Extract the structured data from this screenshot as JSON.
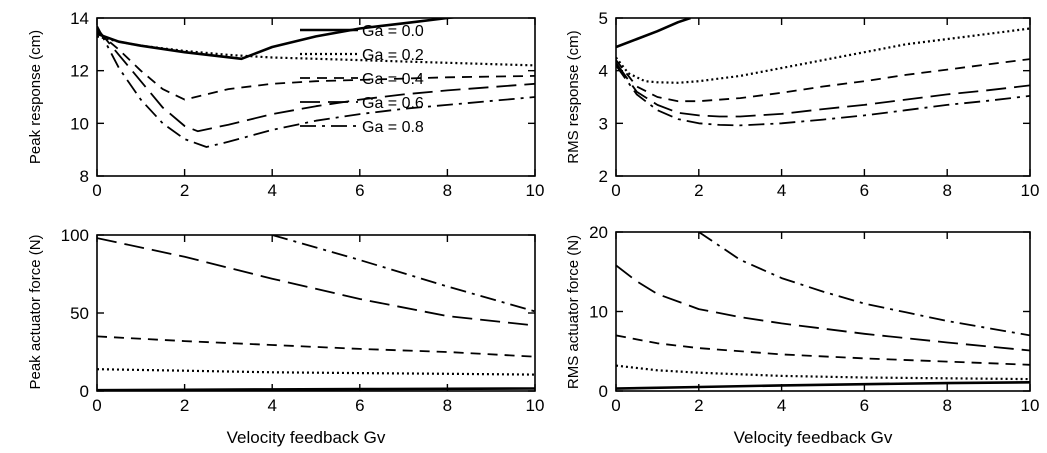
{
  "legend": {
    "placement": "top-right of upper-left panel",
    "entries": [
      "Ga = 0.0",
      "Ga = 0.2",
      "Ga = 0.4",
      "Ga = 0.6",
      "Ga = 0.8"
    ]
  },
  "chart_data": [
    {
      "id": "peak-response",
      "type": "line",
      "title": "",
      "xlabel": "",
      "ylabel": "Peak response (cm)",
      "xlim": [
        0,
        10
      ],
      "ylim": [
        8,
        14
      ],
      "xticks": [
        "0",
        "2",
        "4",
        "6",
        "8",
        "10"
      ],
      "yticks": [
        "8",
        "10",
        "12",
        "14"
      ],
      "grid": false,
      "series": [
        {
          "name": "Ga = 0.0",
          "dash": "solid",
          "x": [
            0,
            0.5,
            1,
            2,
            3.3,
            4,
            5,
            6,
            7,
            8,
            8.5,
            10
          ],
          "y": [
            13.4,
            13.1,
            12.95,
            12.7,
            12.45,
            12.9,
            13.3,
            13.6,
            13.8,
            14.0,
            14.1,
            14.1
          ]
        },
        {
          "name": "Ga = 0.2",
          "dash": "dotted",
          "x": [
            0,
            0.5,
            1,
            2,
            3,
            4,
            5,
            6,
            7,
            8,
            9,
            10
          ],
          "y": [
            13.3,
            13.1,
            12.95,
            12.75,
            12.6,
            12.5,
            12.45,
            12.4,
            12.35,
            12.3,
            12.25,
            12.2
          ]
        },
        {
          "name": "Ga = 0.4",
          "dash": "dash",
          "x": [
            0,
            0.5,
            1,
            1.5,
            2,
            3,
            4,
            5,
            6,
            7,
            8,
            10
          ],
          "y": [
            13.5,
            12.8,
            12.0,
            11.3,
            10.9,
            11.3,
            11.5,
            11.6,
            11.65,
            11.7,
            11.75,
            11.8
          ]
        },
        {
          "name": "Ga = 0.6",
          "dash": "longdash",
          "x": [
            0,
            0.5,
            1,
            1.5,
            2,
            2.3,
            3,
            4,
            5,
            6,
            7,
            8,
            10
          ],
          "y": [
            13.6,
            12.6,
            11.6,
            10.6,
            9.9,
            9.7,
            9.95,
            10.35,
            10.65,
            10.9,
            11.1,
            11.25,
            11.5
          ]
        },
        {
          "name": "Ga = 0.8",
          "dash": "dashdot",
          "x": [
            0,
            0.5,
            1,
            1.5,
            2,
            2.5,
            3,
            4,
            5,
            6,
            7,
            8,
            10
          ],
          "y": [
            13.7,
            12.1,
            10.9,
            10.0,
            9.4,
            9.1,
            9.3,
            9.75,
            10.1,
            10.35,
            10.55,
            10.7,
            11.0
          ]
        }
      ]
    },
    {
      "id": "rms-response",
      "type": "line",
      "title": "",
      "xlabel": "",
      "ylabel": "RMS response (cm)",
      "xlim": [
        0,
        10
      ],
      "ylim": [
        2,
        5
      ],
      "xticks": [
        "0",
        "2",
        "4",
        "6",
        "8",
        "10"
      ],
      "yticks": [
        "2",
        "3",
        "4",
        "5"
      ],
      "grid": false,
      "series": [
        {
          "name": "Ga = 0.0",
          "dash": "solid",
          "x": [
            0,
            0.5,
            1,
            1.5,
            1.8
          ],
          "y": [
            4.45,
            4.6,
            4.75,
            4.92,
            5.0
          ]
        },
        {
          "name": "Ga = 0.2",
          "dash": "dotted",
          "x": [
            0,
            0.3,
            0.7,
            1,
            1.5,
            2,
            3,
            4,
            5,
            6,
            7,
            8,
            9,
            10
          ],
          "y": [
            4.25,
            3.95,
            3.8,
            3.78,
            3.77,
            3.8,
            3.9,
            4.05,
            4.2,
            4.35,
            4.5,
            4.6,
            4.7,
            4.8
          ]
        },
        {
          "name": "Ga = 0.4",
          "dash": "dash",
          "x": [
            0,
            0.5,
            1,
            1.5,
            2,
            3,
            4,
            5,
            6,
            7,
            8,
            9,
            10
          ],
          "y": [
            4.2,
            3.7,
            3.5,
            3.42,
            3.42,
            3.48,
            3.58,
            3.7,
            3.8,
            3.92,
            4.02,
            4.12,
            4.22
          ]
        },
        {
          "name": "Ga = 0.6",
          "dash": "longdash",
          "x": [
            0,
            0.5,
            1,
            1.5,
            2,
            2.5,
            3,
            4,
            5,
            6,
            7,
            8,
            9,
            10
          ],
          "y": [
            4.15,
            3.6,
            3.35,
            3.2,
            3.15,
            3.13,
            3.13,
            3.18,
            3.27,
            3.35,
            3.45,
            3.55,
            3.63,
            3.72
          ]
        },
        {
          "name": "Ga = 0.8",
          "dash": "dashdot",
          "x": [
            0,
            0.5,
            1,
            1.5,
            2,
            2.5,
            3,
            4,
            5,
            6,
            7,
            8,
            9,
            10
          ],
          "y": [
            4.1,
            3.55,
            3.25,
            3.08,
            3.0,
            2.97,
            2.96,
            3.0,
            3.07,
            3.15,
            3.25,
            3.35,
            3.43,
            3.52
          ]
        }
      ]
    },
    {
      "id": "peak-actuator-force",
      "type": "line",
      "title": "",
      "xlabel": "Velocity feedback Gv",
      "ylabel": "Peak actuator force (N)",
      "xlim": [
        0,
        10
      ],
      "ylim": [
        0,
        100
      ],
      "xticks": [
        "0",
        "2",
        "4",
        "6",
        "8",
        "10"
      ],
      "yticks": [
        "0",
        "50",
        "100"
      ],
      "grid": false,
      "series": [
        {
          "name": "Ga = 0.0",
          "dash": "solid",
          "x": [
            0,
            2,
            4,
            6,
            8,
            10
          ],
          "y": [
            0.5,
            0.8,
            1.0,
            1.2,
            1.4,
            1.6
          ]
        },
        {
          "name": "Ga = 0.2",
          "dash": "dotted",
          "x": [
            0,
            2,
            4,
            6,
            8,
            10
          ],
          "y": [
            14,
            13,
            12,
            11.5,
            11,
            10.5
          ]
        },
        {
          "name": "Ga = 0.4",
          "dash": "dash",
          "x": [
            0,
            2,
            4,
            6,
            8,
            10
          ],
          "y": [
            35,
            32,
            29.5,
            27,
            25,
            22
          ]
        },
        {
          "name": "Ga = 0.6",
          "dash": "longdash",
          "x": [
            0,
            2,
            4,
            6,
            8,
            10
          ],
          "y": [
            98,
            86,
            72,
            59,
            48,
            42
          ]
        },
        {
          "name": "Ga = 0.8",
          "dash": "dashdot",
          "x": [
            4,
            6,
            8,
            10
          ],
          "y": [
            100,
            84,
            67,
            51
          ]
        }
      ]
    },
    {
      "id": "rms-actuator-force",
      "type": "line",
      "title": "",
      "xlabel": "Velocity feedback Gv",
      "ylabel": "RMS actuator force (N)",
      "xlim": [
        0,
        10
      ],
      "ylim": [
        0,
        20
      ],
      "xticks": [
        "0",
        "2",
        "4",
        "6",
        "8",
        "10"
      ],
      "yticks": [
        "0",
        "10",
        "20"
      ],
      "grid": false,
      "series": [
        {
          "name": "Ga = 0.0",
          "dash": "solid",
          "x": [
            0,
            2,
            4,
            6,
            8,
            10
          ],
          "y": [
            0.3,
            0.5,
            0.7,
            0.85,
            1.0,
            1.1
          ]
        },
        {
          "name": "Ga = 0.2",
          "dash": "dotted",
          "x": [
            0,
            1,
            2,
            4,
            6,
            8,
            10
          ],
          "y": [
            3.2,
            2.6,
            2.3,
            1.9,
            1.7,
            1.6,
            1.5
          ]
        },
        {
          "name": "Ga = 0.4",
          "dash": "dash",
          "x": [
            0,
            1,
            2,
            4,
            6,
            8,
            10
          ],
          "y": [
            7.0,
            6.0,
            5.4,
            4.6,
            4.1,
            3.7,
            3.3
          ]
        },
        {
          "name": "Ga = 0.6",
          "dash": "longdash",
          "x": [
            0,
            0.5,
            1,
            2,
            3,
            4,
            6,
            8,
            10
          ],
          "y": [
            15.8,
            13.8,
            12.2,
            10.3,
            9.3,
            8.5,
            7.2,
            6.1,
            5.1
          ]
        },
        {
          "name": "Ga = 0.8",
          "dash": "dashdot",
          "x": [
            2,
            3,
            4,
            5,
            6,
            7,
            8,
            9,
            10
          ],
          "y": [
            20,
            16.5,
            14.2,
            12.5,
            11.0,
            9.9,
            8.8,
            7.9,
            7.0
          ]
        }
      ]
    }
  ]
}
